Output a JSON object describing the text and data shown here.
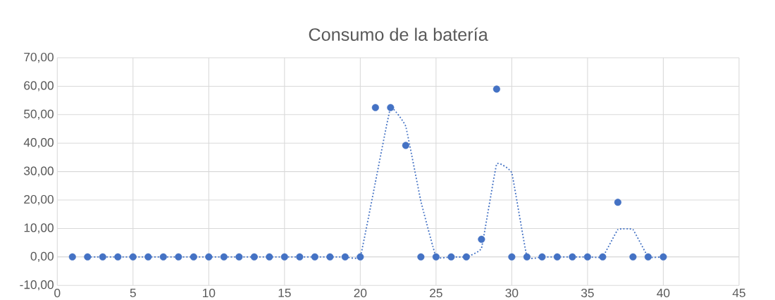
{
  "chart_data": {
    "type": "scatter",
    "title": "Consumo de la batería",
    "series": [
      {
        "color": "#4472c4",
        "marker": "circle",
        "x": [
          1,
          2,
          3,
          4,
          5,
          6,
          7,
          8,
          9,
          10,
          11,
          12,
          13,
          14,
          15,
          16,
          17,
          18,
          19,
          20,
          21,
          22,
          23,
          24,
          25,
          26,
          27,
          28,
          29,
          30,
          31,
          32,
          33,
          34,
          35,
          36,
          37,
          38,
          39,
          40
        ],
        "values": [
          0,
          0,
          0,
          0,
          0,
          0,
          0,
          0,
          0,
          0,
          0,
          0,
          0,
          0,
          0,
          0,
          0,
          0,
          0,
          0,
          52.5,
          52.5,
          39.2,
          0,
          0,
          0,
          0,
          6.2,
          59,
          0,
          0,
          0,
          0,
          0,
          0,
          0,
          19.2,
          0,
          0,
          0
        ]
      },
      {
        "type": "line",
        "color": "#4472c4",
        "line_style": "dotted",
        "x": [
          2,
          3,
          4,
          5,
          6,
          7,
          8,
          9,
          10,
          11,
          12,
          13,
          14,
          15,
          16,
          17,
          18,
          19,
          20,
          21,
          22,
          23,
          24,
          25,
          26,
          27,
          28,
          29,
          30,
          31,
          32,
          33,
          34,
          35,
          36,
          37,
          38,
          39,
          40
        ],
        "values": [
          0,
          0,
          0,
          0,
          0,
          0,
          0,
          0,
          0,
          0,
          0,
          0,
          0,
          0,
          0,
          0,
          0,
          0,
          0,
          26.3,
          52.5,
          45.9,
          19.6,
          0,
          0,
          0,
          3.1,
          32.6,
          29.5,
          0,
          0,
          0,
          0,
          0,
          0,
          9.6,
          9.6,
          0,
          0
        ]
      }
    ],
    "xlim": [
      0,
      45
    ],
    "xticks": [
      0,
      5,
      10,
      15,
      20,
      25,
      30,
      35,
      40,
      45
    ],
    "ylim": [
      -10,
      70
    ],
    "yticks": [
      {
        "value": -10,
        "label": "-10,00"
      },
      {
        "value": 0,
        "label": "0,00"
      },
      {
        "value": 10,
        "label": "10,00"
      },
      {
        "value": 20,
        "label": "20,00"
      },
      {
        "value": 30,
        "label": "30,00"
      },
      {
        "value": 40,
        "label": "40,00"
      },
      {
        "value": 50,
        "label": "50,00"
      },
      {
        "value": 60,
        "label": "60,00"
      },
      {
        "value": 70,
        "label": "70,00"
      }
    ],
    "grid": true
  }
}
